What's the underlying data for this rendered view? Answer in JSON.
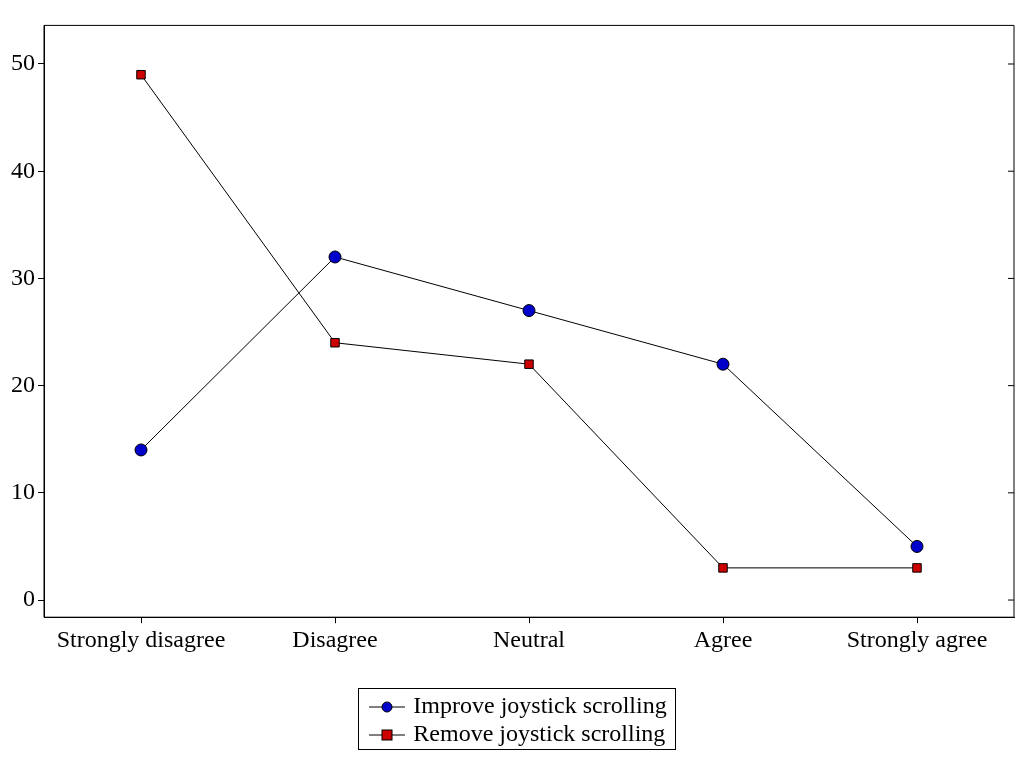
{
  "chart_data": {
    "type": "line",
    "categories": [
      "Strongly disagree",
      "Disagree",
      "Neutral",
      "Agree",
      "Strongly agree"
    ],
    "series": [
      {
        "name": "Improve joystick scrolling",
        "color": "#0000cc",
        "marker": "circle",
        "values": [
          14,
          32,
          27,
          22,
          5
        ]
      },
      {
        "name": "Remove joystick scrolling",
        "color": "#cc0000",
        "marker": "square",
        "values": [
          49,
          24,
          22,
          3,
          3
        ]
      }
    ],
    "ylim": [
      -1.6,
      53.6
    ],
    "yticks": [
      0,
      10,
      20,
      30,
      40,
      50
    ],
    "grid": false,
    "legend": "bottom",
    "line_style": "solid"
  }
}
